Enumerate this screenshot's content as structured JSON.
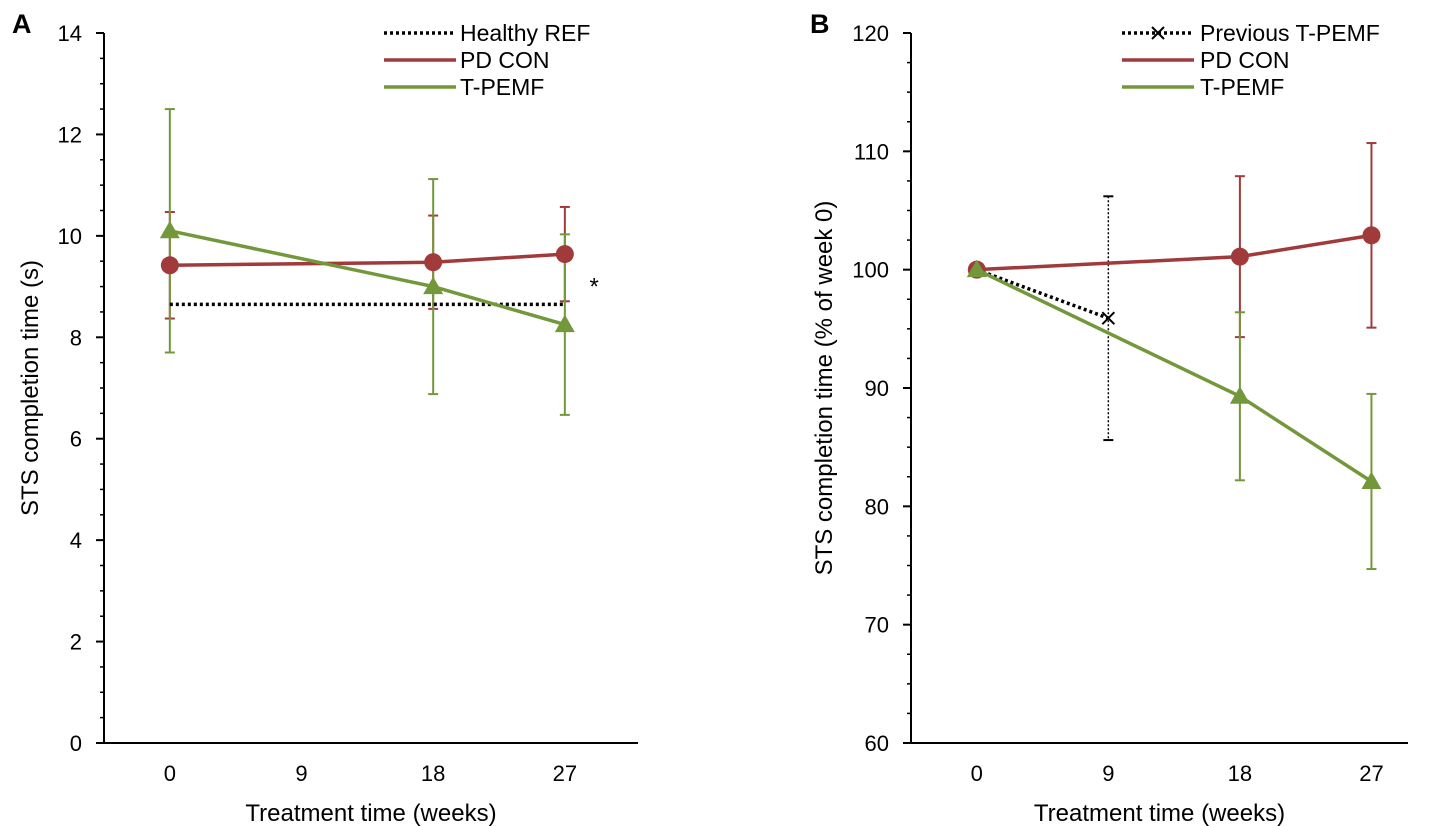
{
  "colors": {
    "healthy_ref": "#000000",
    "previous_tpemf": "#000000",
    "pd_con": "#a13a3a",
    "tpemf": "#73983c"
  },
  "chart_data": [
    {
      "panel": "A",
      "type": "line",
      "xlabel": "Treatment time (weeks)",
      "ylabel": "STS completion time (s)",
      "xticks": [
        0,
        9,
        18,
        27
      ],
      "xlim": [
        -4.5,
        32
      ],
      "ylim": [
        0,
        14
      ],
      "yticks": [
        0,
        2,
        4,
        6,
        8,
        10,
        12,
        14
      ],
      "grid": false,
      "legend_position": "top-right",
      "annotations": [
        {
          "text": "*",
          "x": 29,
          "y": 9.0
        }
      ],
      "series": [
        {
          "name": "Healthy REF",
          "style": "dotted",
          "color_key": "healthy_ref",
          "marker": "none",
          "x": [
            0,
            27
          ],
          "y": [
            8.65,
            8.65
          ],
          "err": null
        },
        {
          "name": "PD CON",
          "style": "solid",
          "color_key": "pd_con",
          "marker": "circle",
          "x": [
            0,
            18,
            27
          ],
          "y": [
            9.42,
            9.48,
            9.64
          ],
          "err": [
            1.05,
            0.92,
            0.93
          ]
        },
        {
          "name": "T-PEMF",
          "style": "solid",
          "color_key": "tpemf",
          "marker": "triangle",
          "x": [
            0,
            18,
            27
          ],
          "y": [
            10.1,
            9.0,
            8.25
          ],
          "err": [
            2.4,
            2.12,
            1.78
          ]
        }
      ]
    },
    {
      "panel": "B",
      "type": "line",
      "xlabel": "Treatment time (weeks)",
      "ylabel": "STS completion time (% of week 0)",
      "xticks": [
        0,
        9,
        18,
        27
      ],
      "xlim": [
        -4.5,
        29.5
      ],
      "ylim": [
        60,
        120
      ],
      "yticks": [
        60,
        70,
        80,
        90,
        100,
        110,
        120
      ],
      "grid": false,
      "legend_position": "top-right",
      "annotations": [],
      "series": [
        {
          "name": "Previous T-PEMF",
          "style": "dotted",
          "color_key": "previous_tpemf",
          "marker": "x",
          "x": [
            0,
            9
          ],
          "y": [
            100,
            95.9
          ],
          "err": [
            null,
            10.3
          ]
        },
        {
          "name": "PD CON",
          "style": "solid",
          "color_key": "pd_con",
          "marker": "circle",
          "x": [
            0,
            18,
            27
          ],
          "y": [
            100,
            101.1,
            102.9
          ],
          "err": [
            null,
            6.8,
            7.8
          ]
        },
        {
          "name": "T-PEMF",
          "style": "solid",
          "color_key": "tpemf",
          "marker": "triangle",
          "x": [
            0,
            18,
            27
          ],
          "y": [
            100,
            89.3,
            82.1
          ],
          "err": [
            null,
            7.1,
            7.4
          ]
        }
      ]
    }
  ]
}
